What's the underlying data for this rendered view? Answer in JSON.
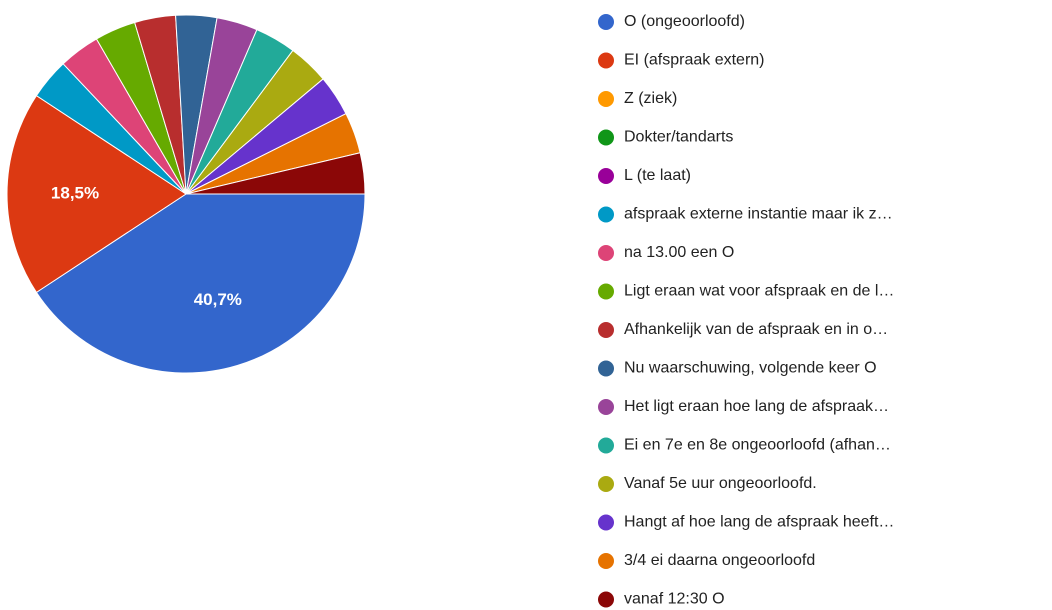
{
  "chart_data": {
    "type": "pie",
    "categories": [
      "O (ongeoorloofd)",
      "EI (afspraak extern)",
      "Z (ziek)",
      "Dokter/tandarts",
      "L (te laat)",
      "afspraak externe instantie maar ik z…",
      "na 13.00 een O",
      "Ligt eraan wat voor afspraak en de l…",
      "Afhankelijk van de afspraak en in o…",
      "Nu waarschuwing, volgende keer O",
      "Het ligt eraan hoe lang de afspraak…",
      "Ei en 7e en 8e ongeoorloofd (afhan…",
      "Vanaf 5e uur ongeoorloofd.",
      "Hangt af hoe lang de afspraak heeft…",
      "3/4 ei daarna ongeoorloofd",
      "vanaf 12:30 O"
    ],
    "values": [
      40.7,
      18.5,
      0,
      0,
      0,
      3.7,
      3.7,
      3.7,
      3.7,
      3.7,
      3.7,
      3.7,
      3.7,
      3.7,
      3.7,
      3.7
    ],
    "value_labels": [
      "40,7%",
      "18,5%",
      null,
      null,
      null,
      null,
      null,
      null,
      null,
      null,
      null,
      null,
      null,
      null,
      null,
      null
    ],
    "colors": [
      "#3366cc",
      "#dc3912",
      "#ff9900",
      "#109618",
      "#990099",
      "#0099c6",
      "#dd4477",
      "#66aa00",
      "#b82e2e",
      "#316395",
      "#994499",
      "#22aa99",
      "#aaaa11",
      "#6633cc",
      "#e67300",
      "#8b0707"
    ],
    "legend": "right"
  }
}
